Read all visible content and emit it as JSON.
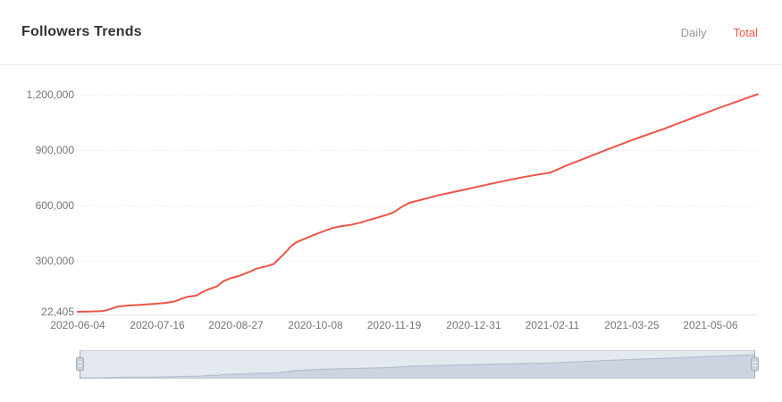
{
  "header": {
    "title": "Followers Trends",
    "tabs": [
      {
        "label": "Daily",
        "active": false
      },
      {
        "label": "Total",
        "active": true
      }
    ]
  },
  "colors": {
    "accent": "#ee5545",
    "title": "#333333",
    "tab_inactive": "#999999",
    "axis_label": "#757575",
    "grid": "#e7e7e7",
    "axis_line": "#e3e3e3",
    "divider": "#ebebeb",
    "brush_fill": "#e4e9f0",
    "brush_area": "#ccd4e1",
    "brush_line": "#aeb9c9",
    "brush_border": "#ccd1da",
    "handle_fill": "#c9d1dd",
    "handle_border": "#a2adbe"
  },
  "chart_data": {
    "type": "line",
    "title": "Followers Trends",
    "series_name": "Total",
    "xlabel": "",
    "ylabel": "",
    "ylim": [
      22405,
      1200000
    ],
    "grid": "horizontal-dotted",
    "legend": "none",
    "x_ticks": [
      "2020-06-04",
      "2020-07-16",
      "2020-08-27",
      "2020-10-08",
      "2020-11-19",
      "2020-12-31",
      "2021-02-11",
      "2021-03-25",
      "2021-05-06"
    ],
    "x_tick_interval_days": 42,
    "y_axis": [
      {
        "label": "1,200,000",
        "value": 1200000
      },
      {
        "label": "900,000",
        "value": 900000
      },
      {
        "label": "600,000",
        "value": 600000
      },
      {
        "label": "300,000",
        "value": 300000
      },
      {
        "label": "22,405",
        "value": 22405
      }
    ],
    "points": [
      {
        "date": "2020-06-04",
        "value": 22405
      },
      {
        "date": "2020-06-10",
        "value": 23200
      },
      {
        "date": "2020-06-17",
        "value": 26000
      },
      {
        "date": "2020-06-21",
        "value": 36000
      },
      {
        "date": "2020-06-25",
        "value": 50000
      },
      {
        "date": "2020-06-30",
        "value": 56000
      },
      {
        "date": "2020-07-07",
        "value": 60000
      },
      {
        "date": "2020-07-14",
        "value": 65000
      },
      {
        "date": "2020-07-21",
        "value": 71000
      },
      {
        "date": "2020-07-26",
        "value": 80000
      },
      {
        "date": "2020-07-29",
        "value": 92000
      },
      {
        "date": "2020-08-01",
        "value": 103000
      },
      {
        "date": "2020-08-06",
        "value": 110000
      },
      {
        "date": "2020-08-09",
        "value": 128000
      },
      {
        "date": "2020-08-13",
        "value": 146000
      },
      {
        "date": "2020-08-17",
        "value": 160000
      },
      {
        "date": "2020-08-20",
        "value": 186000
      },
      {
        "date": "2020-08-24",
        "value": 204000
      },
      {
        "date": "2020-08-29",
        "value": 218000
      },
      {
        "date": "2020-09-03",
        "value": 238000
      },
      {
        "date": "2020-09-07",
        "value": 256000
      },
      {
        "date": "2020-09-12",
        "value": 268000
      },
      {
        "date": "2020-09-16",
        "value": 281000
      },
      {
        "date": "2020-09-19",
        "value": 310000
      },
      {
        "date": "2020-09-22",
        "value": 340000
      },
      {
        "date": "2020-09-25",
        "value": 375000
      },
      {
        "date": "2020-09-28",
        "value": 398000
      },
      {
        "date": "2020-10-03",
        "value": 420000
      },
      {
        "date": "2020-10-08",
        "value": 441000
      },
      {
        "date": "2020-10-13",
        "value": 460000
      },
      {
        "date": "2020-10-17",
        "value": 475000
      },
      {
        "date": "2020-10-22",
        "value": 486000
      },
      {
        "date": "2020-10-27",
        "value": 493000
      },
      {
        "date": "2020-11-01",
        "value": 505000
      },
      {
        "date": "2020-11-06",
        "value": 520000
      },
      {
        "date": "2020-11-11",
        "value": 535000
      },
      {
        "date": "2020-11-16",
        "value": 550000
      },
      {
        "date": "2020-11-19",
        "value": 562000
      },
      {
        "date": "2020-11-23",
        "value": 590000
      },
      {
        "date": "2020-11-27",
        "value": 612000
      },
      {
        "date": "2020-12-02",
        "value": 625000
      },
      {
        "date": "2020-12-07",
        "value": 638000
      },
      {
        "date": "2020-12-12",
        "value": 652000
      },
      {
        "date": "2020-12-17",
        "value": 663000
      },
      {
        "date": "2020-12-24",
        "value": 678000
      },
      {
        "date": "2020-12-31",
        "value": 694000
      },
      {
        "date": "2021-01-07",
        "value": 710000
      },
      {
        "date": "2021-01-14",
        "value": 725000
      },
      {
        "date": "2021-01-21",
        "value": 740000
      },
      {
        "date": "2021-01-28",
        "value": 754000
      },
      {
        "date": "2021-02-04",
        "value": 766000
      },
      {
        "date": "2021-02-10",
        "value": 776000
      },
      {
        "date": "2021-02-18",
        "value": 812000
      },
      {
        "date": "2021-02-27",
        "value": 848000
      },
      {
        "date": "2021-03-13",
        "value": 904000
      },
      {
        "date": "2021-03-27",
        "value": 958000
      },
      {
        "date": "2021-04-11",
        "value": 1012000
      },
      {
        "date": "2021-04-25",
        "value": 1066000
      },
      {
        "date": "2021-05-09",
        "value": 1120000
      },
      {
        "date": "2021-05-21",
        "value": 1164000
      },
      {
        "date": "2021-05-31",
        "value": 1200000
      }
    ]
  }
}
